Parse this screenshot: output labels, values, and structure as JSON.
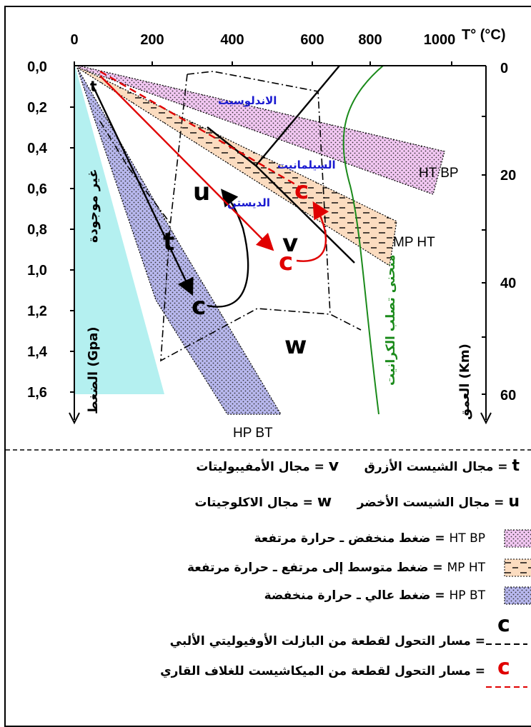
{
  "axes": {
    "temp_label": "T° (°C)",
    "temp_ticks": [
      "0",
      "200",
      "400",
      "600",
      "800",
      "1000"
    ],
    "pressure_ticks": [
      "0,0",
      "0,2",
      "0,4",
      "0,6",
      "0,8",
      "1,0",
      "1,2",
      "1,4",
      "1,6"
    ],
    "pressure_label": "الضغط (Gpa)",
    "depth_ticks": [
      "0",
      "20",
      "40",
      "60"
    ],
    "depth_label": "العمق (Km)"
  },
  "regions": {
    "not_exist": "غير موجودة",
    "ht_bp": "HT BP",
    "mp_ht": "MP HT",
    "hp_bt": "HP BT"
  },
  "minerals": {
    "andalusite": "الاندلوسيت",
    "sillimanite": "السيلمانيت",
    "disthene": "الديستن"
  },
  "granite_curve": "منحنى تصلب الكرانيت",
  "facies_symbols": {
    "t": "t",
    "v": "v",
    "u": "u",
    "w": "w",
    "c": "c"
  },
  "legend": {
    "row1": {
      "a_sym": "t",
      "a_text": "= مجال الشيست الأزرق",
      "b_sym": "v",
      "b_text": "= مجال الأمفيبوليتات"
    },
    "row2": {
      "a_sym": "u",
      "a_text": "= مجال الشيست الأخضر",
      "b_sym": "w",
      "b_text": "= مجال الاكلوجيتات"
    },
    "ht_bp": {
      "label": "HT BP",
      "text": "= ضغط منخفض ـ حرارة مرتفعة"
    },
    "mp_ht": {
      "label": "MP HT",
      "text": "= ضغط متوسط إلى مرتفع ـ حرارة مرتفعة"
    },
    "hp_bt": {
      "label": "HP BT",
      "text": "= ضغط عالي ـ حرارة منخفضة"
    },
    "path_black": "=  مسار التحول لقطعة من البازلت الأوفيوليتي الألبي",
    "path_red": "=  مسار التحول لقطعة من الميكاشيست للغلاف القاري"
  },
  "colors": {
    "ht_bp_fill": "#f3c8f3",
    "mp_ht_fill": "#fbdcc0",
    "hp_bt_fill": "#b8b8ee",
    "not_exist_fill": "#b4f0f0",
    "granite_curve": "#1a8a1a",
    "red_path": "#e00000",
    "mineral_text": "#1a1ad0"
  }
}
